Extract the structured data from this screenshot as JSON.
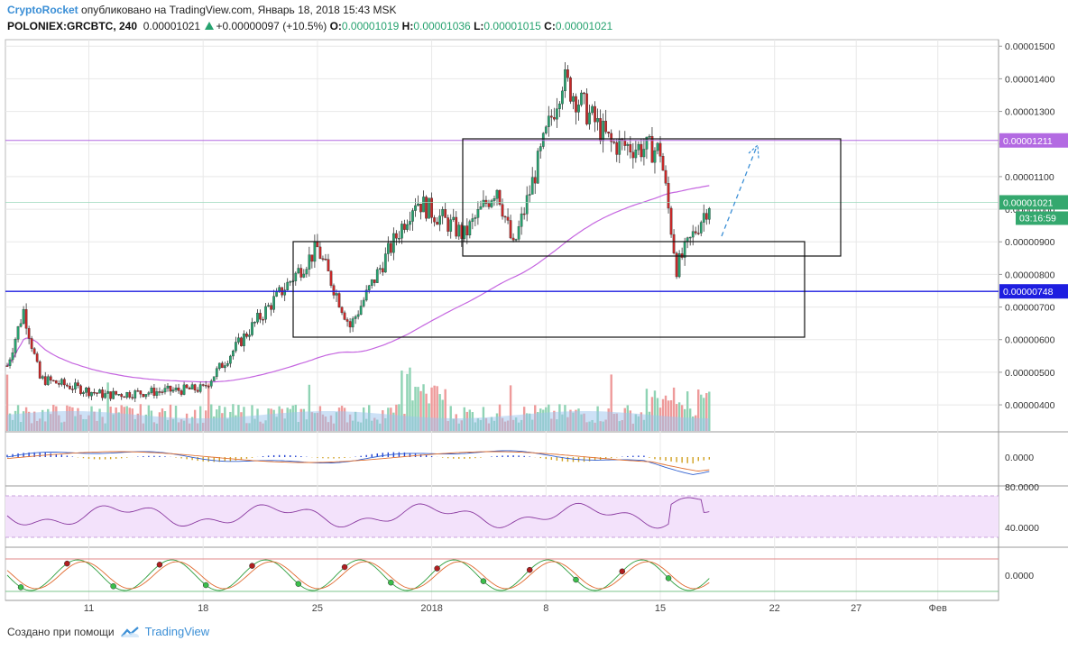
{
  "header": {
    "author": "CryptoRocket",
    "published": "опубликовано на TradingView.com, Январь 18, 2018 15:43 MSK",
    "symbol": "POLONIEX:GRCBTC, 240",
    "last": "0.00001021",
    "change": "+0.00000097 (+10.5%)",
    "o_label": "O:",
    "o": "0.00001019",
    "h_label": "H:",
    "h": "0.00001036",
    "l_label": "L:",
    "l": "0.00001015",
    "c_label": "C:",
    "c": "0.00001021"
  },
  "footer": {
    "created_with": "Создано при помощи",
    "brand": "TradingView"
  },
  "colors": {
    "up": "#26a26f",
    "down": "#c62828",
    "ma": "#c566e0",
    "level_violet": "#b36ae2",
    "level_blue": "#1e1ee0",
    "level_green": "#34a86e",
    "volume_up": "#8fd3b4",
    "volume_down": "#ee9a9a",
    "grid": "#e8e8e8"
  },
  "chart_data": [
    {
      "type": "candlestick",
      "pane": "price",
      "y_axis_ticks": [
        "0.00001500",
        "0.00001400",
        "0.00001300",
        "0.00001200",
        "0.00001100",
        "0.00001000",
        "0.00000900",
        "0.00000800",
        "0.00000700",
        "0.00000600",
        "0.00000500",
        "0.00000400"
      ],
      "ylim": [
        3.2e-06,
        1.52e-05
      ],
      "x_ticks": [
        "11",
        "18",
        "25",
        "2018",
        "8",
        "15",
        "22",
        "27",
        "Фев"
      ],
      "price_labels": [
        {
          "value": "0.00001211",
          "color": "#b36ae2"
        },
        {
          "value": "0.00001021",
          "color": "#34a86e"
        },
        {
          "value": "03:16:59",
          "color": "#34a86e"
        },
        {
          "value": "0.00000748",
          "color": "#1e1ee0"
        }
      ],
      "key_points": [
        {
          "date": "Dec 6",
          "close": 5.2e-06
        },
        {
          "date": "Dec 7",
          "close": 6.9e-06
        },
        {
          "date": "Dec 8",
          "close": 4.8e-06
        },
        {
          "date": "Dec 12",
          "close": 4.3e-06
        },
        {
          "date": "Dec 18",
          "close": 4.5e-06
        },
        {
          "date": "Dec 21",
          "close": 6.4e-06
        },
        {
          "date": "Dec 25",
          "close": 8.8e-06
        },
        {
          "date": "Dec 27",
          "close": 6.4e-06
        },
        {
          "date": "Dec 31",
          "close": 1.03e-05
        },
        {
          "date": "Jan 3",
          "close": 9.2e-06
        },
        {
          "date": "Jan 5",
          "close": 1.07e-05
        },
        {
          "date": "Jan 6",
          "close": 8.8e-06
        },
        {
          "date": "Jan 9",
          "close": 1.4e-05
        },
        {
          "date": "Jan 12",
          "close": 1.2e-05
        },
        {
          "date": "Jan 15",
          "close": 1.18e-05
        },
        {
          "date": "Jan 16",
          "close": 8.2e-06
        },
        {
          "date": "Jan 18",
          "close": 1.02e-05
        }
      ],
      "overlays": [
        "moving average",
        "horizontal levels 0.00001211 and 0.00000748",
        "rectangles",
        "dashed forecast arrow",
        "volume"
      ]
    },
    {
      "type": "line",
      "pane": "macd",
      "y_axis_ticks": [
        "0.0000"
      ]
    },
    {
      "type": "line",
      "pane": "rsi",
      "y_axis_ticks": [
        "80.0000",
        "40.0000"
      ]
    },
    {
      "type": "line",
      "pane": "stochastic",
      "y_axis_ticks": [
        "0.0000"
      ]
    }
  ]
}
